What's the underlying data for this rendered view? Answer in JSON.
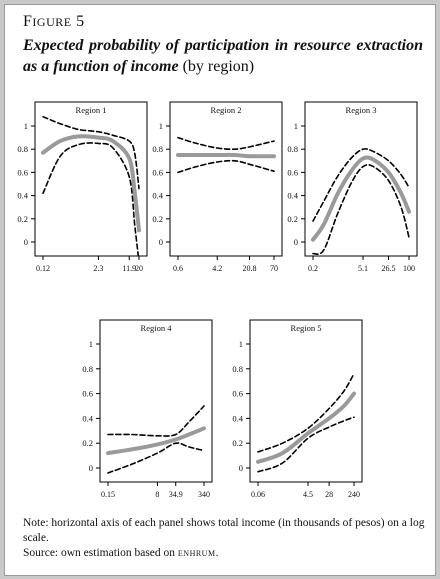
{
  "figure": {
    "label_first": "F",
    "label_rest": "IGURE",
    "number": "5",
    "title": "Expected probability of participation in resource extraction as a function of income",
    "subtitle": "(by region)"
  },
  "note": {
    "line1": "Note: horizontal axis of each panel shows total income (in thousands of pesos) on a log scale.",
    "source_prefix": "Source: own estimation based on ",
    "source_name": "enhrum",
    "source_suffix": "."
  },
  "colors": {
    "estimate": "#9a9a9a",
    "bounds": "#000000",
    "axis": "#000000",
    "card": "#ffffff",
    "page": "#c9c9c9"
  },
  "chart_data": [
    {
      "type": "line",
      "title": "Region 1",
      "x_scale": "log",
      "x_ticks": [
        "0.12",
        "2.3",
        "11.9",
        "20"
      ],
      "y_ticks": [
        "0",
        "0.2",
        "0.4",
        "0.6",
        "0.8",
        "1"
      ],
      "ylim": [
        0,
        1
      ],
      "series": [
        {
          "role": "estimate",
          "x": [
            0.12,
            0.3,
            0.8,
            2.3,
            5,
            11.9,
            16,
            20
          ],
          "y": [
            0.77,
            0.87,
            0.91,
            0.9,
            0.87,
            0.72,
            0.42,
            0.1
          ]
        },
        {
          "role": "upper",
          "x": [
            0.12,
            0.3,
            0.8,
            2.3,
            5,
            11.9,
            16,
            20
          ],
          "y": [
            1.08,
            1.02,
            0.97,
            0.95,
            0.92,
            0.87,
            0.76,
            0.46
          ]
        },
        {
          "role": "lower",
          "x": [
            0.12,
            0.3,
            0.8,
            2.3,
            5,
            11.9,
            16,
            20
          ],
          "y": [
            0.42,
            0.74,
            0.84,
            0.85,
            0.81,
            0.56,
            0.14,
            -0.17
          ]
        }
      ]
    },
    {
      "type": "line",
      "title": "Region 2",
      "x_scale": "log",
      "x_ticks": [
        "0.6",
        "4.2",
        "20.8",
        "70"
      ],
      "y_ticks": [
        "0",
        "0.2",
        "0.4",
        "0.6",
        "0.8",
        "1"
      ],
      "ylim": [
        0,
        1
      ],
      "series": [
        {
          "role": "estimate",
          "x": [
            0.6,
            1.5,
            4.2,
            10,
            20.8,
            70
          ],
          "y": [
            0.75,
            0.75,
            0.75,
            0.75,
            0.74,
            0.74
          ]
        },
        {
          "role": "upper",
          "x": [
            0.6,
            1.5,
            4.2,
            10,
            20.8,
            70
          ],
          "y": [
            0.9,
            0.85,
            0.81,
            0.8,
            0.82,
            0.87
          ]
        },
        {
          "role": "lower",
          "x": [
            0.6,
            1.5,
            4.2,
            10,
            20.8,
            70
          ],
          "y": [
            0.6,
            0.65,
            0.69,
            0.7,
            0.67,
            0.61
          ]
        }
      ]
    },
    {
      "type": "line",
      "title": "Region 3",
      "x_scale": "log",
      "x_ticks": [
        "0.2",
        "5.1",
        "26.5",
        "100"
      ],
      "y_ticks": [
        "0",
        "0.2",
        "0.4",
        "0.6",
        "0.8",
        "1"
      ],
      "ylim": [
        0,
        1
      ],
      "series": [
        {
          "role": "estimate",
          "x": [
            0.2,
            0.4,
            1,
            2.5,
            5.1,
            10,
            26.5,
            60,
            100
          ],
          "y": [
            0.02,
            0.15,
            0.42,
            0.62,
            0.72,
            0.71,
            0.6,
            0.42,
            0.26
          ]
        },
        {
          "role": "upper",
          "x": [
            0.2,
            0.4,
            1,
            2.5,
            5.1,
            10,
            26.5,
            60,
            100
          ],
          "y": [
            0.18,
            0.35,
            0.57,
            0.73,
            0.8,
            0.78,
            0.7,
            0.58,
            0.47
          ]
        },
        {
          "role": "lower",
          "x": [
            0.2,
            0.4,
            1,
            2.5,
            5.1,
            10,
            26.5,
            60,
            100
          ],
          "y": [
            -0.1,
            -0.07,
            0.25,
            0.52,
            0.65,
            0.65,
            0.53,
            0.3,
            0.04
          ]
        }
      ]
    },
    {
      "type": "line",
      "title": "Region 4",
      "x_scale": "log",
      "x_ticks": [
        "0.15",
        "8",
        "34.9",
        "340"
      ],
      "y_ticks": [
        "0",
        "0.2",
        "0.4",
        "0.6",
        "0.8",
        "1"
      ],
      "ylim": [
        0,
        1
      ],
      "series": [
        {
          "role": "estimate",
          "x": [
            0.15,
            1,
            8,
            34.9,
            100,
            340
          ],
          "y": [
            0.12,
            0.15,
            0.19,
            0.23,
            0.27,
            0.32
          ]
        },
        {
          "role": "upper",
          "x": [
            0.15,
            1,
            8,
            34.9,
            100,
            340
          ],
          "y": [
            0.27,
            0.27,
            0.26,
            0.27,
            0.37,
            0.5
          ]
        },
        {
          "role": "lower",
          "x": [
            0.15,
            1,
            8,
            34.9,
            100,
            340
          ],
          "y": [
            -0.04,
            0.03,
            0.12,
            0.2,
            0.17,
            0.14
          ]
        }
      ]
    },
    {
      "type": "line",
      "title": "Region 5",
      "x_scale": "log",
      "x_ticks": [
        "0.06",
        "4.5",
        "28",
        "240"
      ],
      "y_ticks": [
        "0",
        "0.2",
        "0.4",
        "0.6",
        "0.8",
        "1"
      ],
      "ylim": [
        0,
        1
      ],
      "series": [
        {
          "role": "estimate",
          "x": [
            0.06,
            0.5,
            4.5,
            28,
            100,
            240
          ],
          "y": [
            0.05,
            0.12,
            0.28,
            0.4,
            0.5,
            0.6
          ]
        },
        {
          "role": "upper",
          "x": [
            0.06,
            0.5,
            4.5,
            28,
            100,
            240
          ],
          "y": [
            0.13,
            0.2,
            0.32,
            0.48,
            0.62,
            0.76
          ]
        },
        {
          "role": "lower",
          "x": [
            0.06,
            0.5,
            4.5,
            28,
            100,
            240
          ],
          "y": [
            -0.03,
            0.04,
            0.24,
            0.33,
            0.38,
            0.41
          ]
        }
      ]
    }
  ]
}
